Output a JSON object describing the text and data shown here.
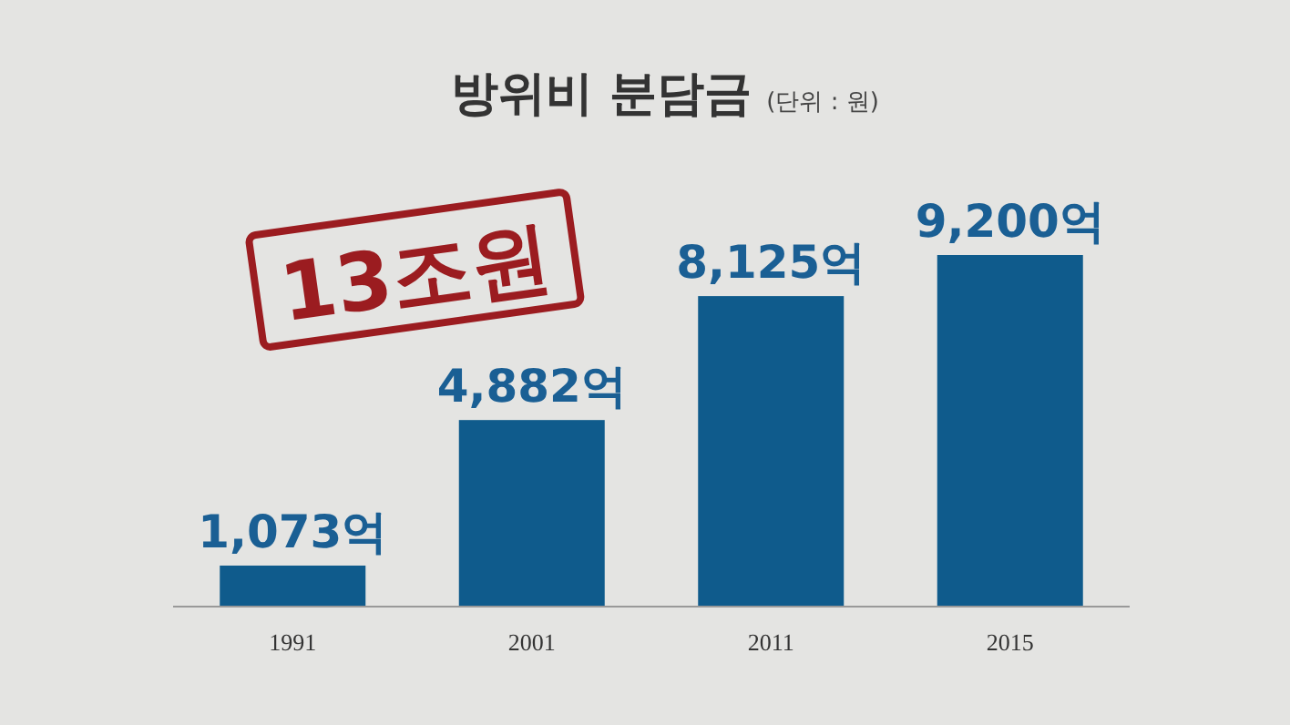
{
  "chart_data": {
    "type": "bar",
    "title": "방위비 분담금",
    "subtitle": "(단위 : 원)",
    "categories": [
      "1991",
      "2001",
      "2011",
      "2015"
    ],
    "values": [
      1073,
      4882,
      8125,
      9200
    ],
    "value_labels": [
      "1,073억",
      "4,882억",
      "8,125억",
      "9,200억"
    ],
    "color": "#0f5b8c",
    "annotations": [
      "13조원"
    ]
  }
}
